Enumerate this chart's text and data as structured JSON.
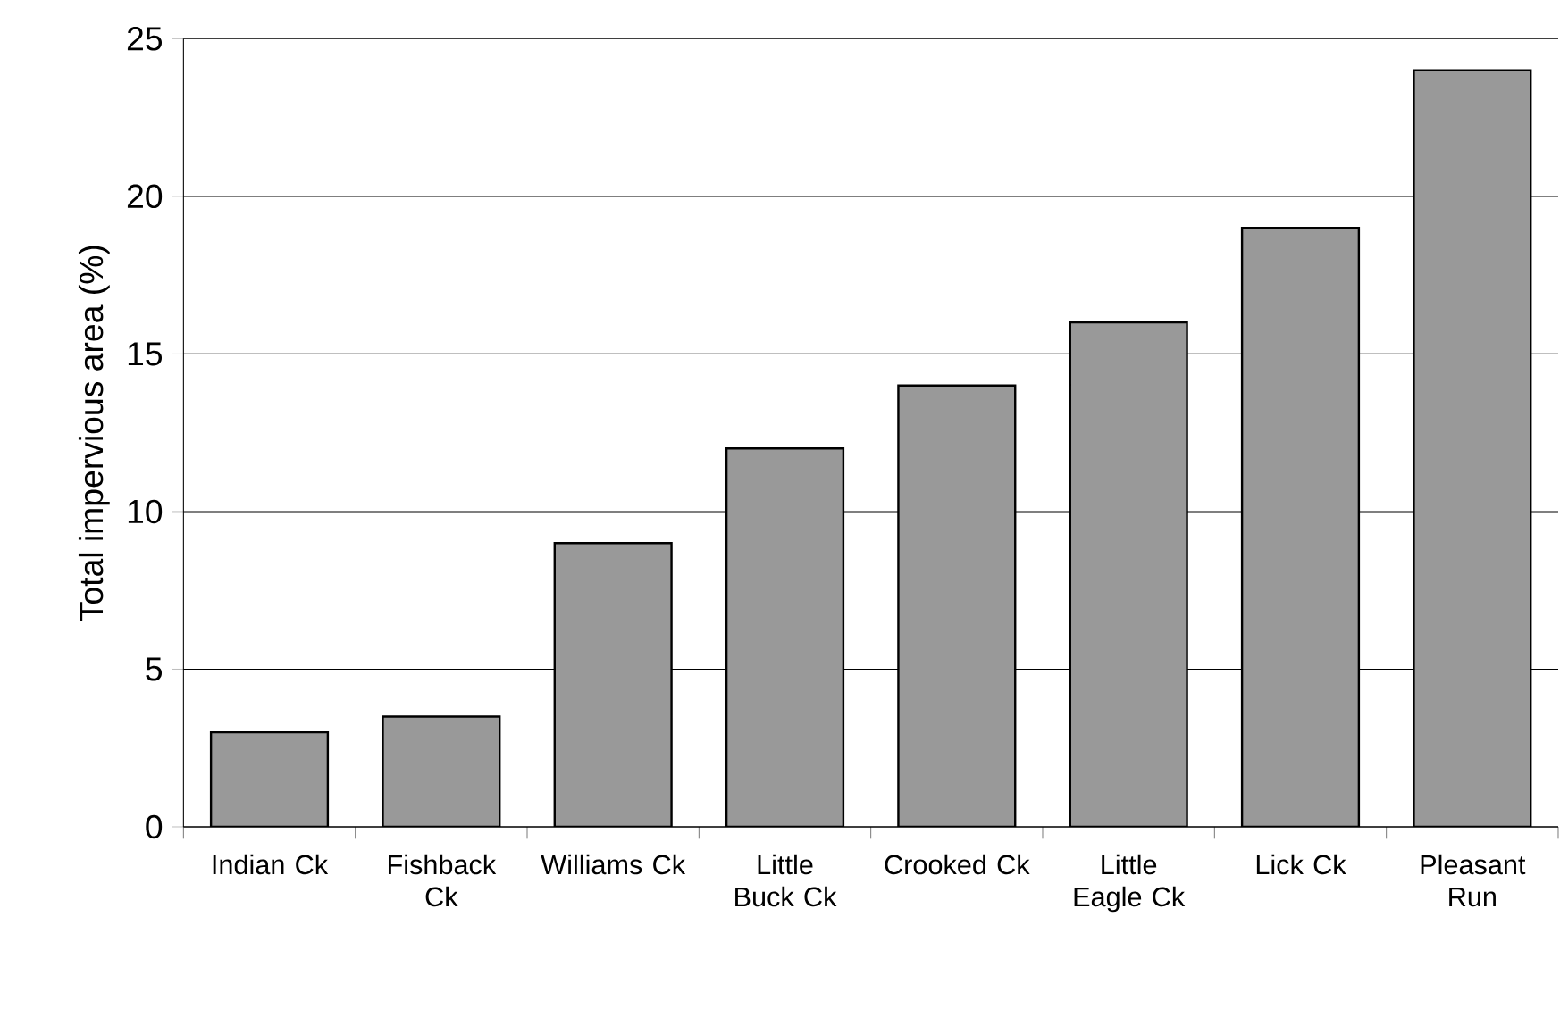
{
  "chart_data": {
    "type": "bar",
    "ylabel": "Total impervious area (%)",
    "categories": [
      "Indian Ck",
      "Fishback Ck",
      "Williams Ck",
      "Little Buck Ck",
      "Crooked Ck",
      "Little Eagle Ck",
      "Lick Ck",
      "Pleasant Run"
    ],
    "values": [
      3,
      3.5,
      9,
      12,
      14,
      16,
      19,
      24
    ],
    "color": "#999999",
    "ylim": [
      0,
      25
    ],
    "yticks": [
      0,
      5,
      10,
      15,
      20,
      25
    ],
    "grid": "y"
  }
}
